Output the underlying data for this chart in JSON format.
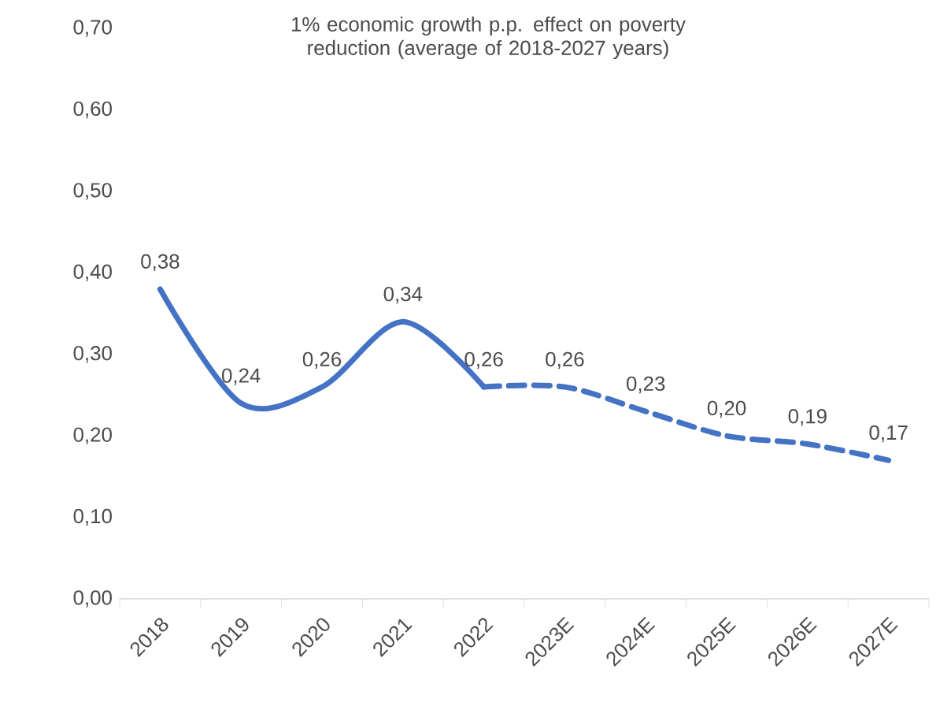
{
  "chart_data": {
    "type": "line",
    "title": "1% economic growth p.p. effect on poverty reduction (average of 2018-2027 years)",
    "categories": [
      "2018",
      "2019",
      "2020",
      "2021",
      "2022",
      "2023E",
      "2024E",
      "2025E",
      "2026E",
      "2027E"
    ],
    "series": [
      {
        "color": "#4472c4",
        "line_style": "solid",
        "values": [
          0.38,
          0.24,
          0.26,
          0.34,
          0.26,
          null,
          null,
          null,
          null,
          null
        ],
        "value_labels": [
          "0,38",
          "0,24",
          "0,26",
          "0,34",
          "0,26",
          null,
          null,
          null,
          null,
          null
        ]
      },
      {
        "color": "#4472c4",
        "line_style": "dashed",
        "values": [
          null,
          null,
          null,
          null,
          0.26,
          0.26,
          0.23,
          0.2,
          0.19,
          0.17
        ],
        "value_labels": [
          null,
          null,
          null,
          null,
          null,
          "0,26",
          "0,23",
          "0,20",
          "0,19",
          "0,17"
        ]
      }
    ],
    "ylim": [
      0,
      0.7
    ],
    "yticks": [
      {
        "value": 0,
        "label": "0,00"
      },
      {
        "value": 0.1,
        "label": "0,10"
      },
      {
        "value": 0.2,
        "label": "0,20"
      },
      {
        "value": 0.3,
        "label": "0,30"
      },
      {
        "value": 0.4,
        "label": "0,40"
      },
      {
        "value": 0.5,
        "label": "0,50"
      },
      {
        "value": 0.6,
        "label": "0,60"
      },
      {
        "value": 0.7,
        "label": "0,70"
      }
    ],
    "marker": "none",
    "grid": false
  }
}
